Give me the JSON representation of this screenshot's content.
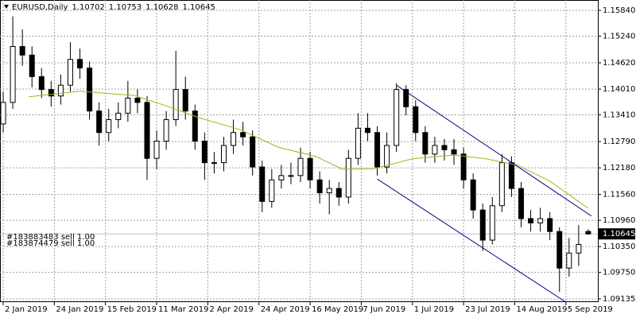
{
  "chart_data": {
    "type": "candlestick",
    "symbol": "EURUSD,Daily",
    "x": [
      0,
      3,
      6,
      9,
      12,
      15,
      18,
      21,
      24,
      27,
      30,
      33,
      36,
      39,
      42,
      45,
      48,
      51,
      54,
      57,
      60,
      63,
      66,
      69,
      72,
      75,
      78,
      81,
      84,
      87,
      90,
      93,
      96,
      99,
      102,
      105,
      108,
      111,
      114,
      117,
      120,
      123,
      126,
      129,
      132,
      135,
      138,
      141,
      144,
      147,
      150,
      153,
      156,
      159,
      162,
      165,
      168,
      171,
      174,
      177,
      180,
      183
    ],
    "open": [
      1.132,
      1.137,
      1.15,
      1.148,
      1.143,
      1.14,
      1.1385,
      1.141,
      1.147,
      1.145,
      1.135,
      1.13,
      1.133,
      1.1345,
      1.138,
      1.137,
      1.124,
      1.128,
      1.133,
      1.14,
      1.135,
      1.128,
      1.123,
      1.123,
      1.127,
      1.13,
      1.129,
      1.122,
      1.114,
      1.119,
      1.12,
      1.12,
      1.124,
      1.119,
      1.116,
      1.117,
      1.115,
      1.124,
      1.131,
      1.13,
      1.122,
      1.127,
      1.14,
      1.136,
      1.13,
      1.125,
      1.127,
      1.126,
      1.125,
      1.119,
      1.112,
      1.105,
      1.113,
      1.123,
      1.117,
      1.11,
      1.109,
      1.11,
      1.107,
      1.0985,
      1.102,
      1.10702
    ],
    "high": [
      1.1395,
      1.157,
      1.154,
      1.15,
      1.145,
      1.142,
      1.1435,
      1.151,
      1.1495,
      1.1465,
      1.137,
      1.1355,
      1.137,
      1.142,
      1.14,
      1.1385,
      1.1305,
      1.135,
      1.149,
      1.143,
      1.1365,
      1.13,
      1.1255,
      1.129,
      1.133,
      1.1325,
      1.1305,
      1.1235,
      1.1215,
      1.1225,
      1.123,
      1.1265,
      1.1255,
      1.121,
      1.119,
      1.1185,
      1.126,
      1.1345,
      1.1345,
      1.1315,
      1.13,
      1.1415,
      1.141,
      1.1375,
      1.1315,
      1.129,
      1.1285,
      1.1285,
      1.1265,
      1.1205,
      1.1135,
      1.115,
      1.125,
      1.1245,
      1.1185,
      1.112,
      1.1125,
      1.1115,
      1.108,
      1.1055,
      1.1085,
      1.10753
    ],
    "low": [
      1.13,
      1.1355,
      1.1455,
      1.1405,
      1.138,
      1.136,
      1.1365,
      1.1395,
      1.1425,
      1.133,
      1.127,
      1.128,
      1.131,
      1.1325,
      1.1345,
      1.119,
      1.1215,
      1.126,
      1.1315,
      1.133,
      1.126,
      1.119,
      1.1205,
      1.121,
      1.125,
      1.127,
      1.12,
      1.1115,
      1.1125,
      1.117,
      1.118,
      1.1185,
      1.117,
      1.1135,
      1.111,
      1.113,
      1.1135,
      1.1225,
      1.128,
      1.12,
      1.1205,
      1.1255,
      1.134,
      1.128,
      1.123,
      1.123,
      1.1235,
      1.1225,
      1.117,
      1.11,
      1.1025,
      1.104,
      1.1115,
      1.115,
      1.108,
      1.107,
      1.107,
      1.105,
      1.093,
      1.0965,
      1.099,
      1.10628
    ],
    "close": [
      1.137,
      1.15,
      1.148,
      1.143,
      1.14,
      1.1385,
      1.141,
      1.147,
      1.145,
      1.135,
      1.13,
      1.133,
      1.1345,
      1.138,
      1.137,
      1.124,
      1.128,
      1.133,
      1.14,
      1.135,
      1.128,
      1.123,
      1.123,
      1.127,
      1.13,
      1.129,
      1.122,
      1.114,
      1.119,
      1.12,
      1.12,
      1.124,
      1.119,
      1.116,
      1.117,
      1.115,
      1.124,
      1.131,
      1.13,
      1.122,
      1.127,
      1.14,
      1.136,
      1.13,
      1.125,
      1.127,
      1.126,
      1.125,
      1.119,
      1.112,
      1.105,
      1.113,
      1.123,
      1.117,
      1.11,
      1.109,
      1.11,
      1.107,
      1.0985,
      1.102,
      1.104,
      1.10645
    ],
    "xlim": [
      -1,
      186
    ],
    "xticks": [
      {
        "value": 0,
        "label": "2 Jan 2019"
      },
      {
        "value": 16,
        "label": "24 Jan 2019"
      },
      {
        "value": 32,
        "label": "15 Feb 2019"
      },
      {
        "value": 48,
        "label": "11 Mar 2019"
      },
      {
        "value": 64,
        "label": "2 Apr 2019"
      },
      {
        "value": 80,
        "label": "24 Apr 2019"
      },
      {
        "value": 96,
        "label": "16 May 2019"
      },
      {
        "value": 112,
        "label": "7 Jun 2019"
      },
      {
        "value": 128,
        "label": "1 Jul 2019"
      },
      {
        "value": 144,
        "label": "23 Jul 2019"
      },
      {
        "value": 160,
        "label": "14 Aug 2019"
      },
      {
        "value": 176,
        "label": "5 Sep 2019"
      }
    ],
    "ylim": [
      1.0906,
      1.1608
    ],
    "yticks": [
      {
        "value": 1.1584,
        "label": "1.15840"
      },
      {
        "value": 1.1524,
        "label": "1.15240"
      },
      {
        "value": 1.1462,
        "label": "1.14620"
      },
      {
        "value": 1.1401,
        "label": "1.14010"
      },
      {
        "value": 1.1341,
        "label": "1.13410"
      },
      {
        "value": 1.1279,
        "label": "1.12790"
      },
      {
        "value": 1.1218,
        "label": "1.12180"
      },
      {
        "value": 1.1156,
        "label": "1.11560"
      },
      {
        "value": 1.1096,
        "label": "1.10960"
      },
      {
        "value": 1.1035,
        "label": "1.10350"
      },
      {
        "value": 1.0975,
        "label": "1.09750"
      },
      1.09135
    ],
    "grid": true,
    "up_color": "#ffffff",
    "down_color": "#000000",
    "ma": {
      "color": "#8fbc1e",
      "x": [
        8,
        24,
        41,
        51,
        61,
        74,
        86,
        98,
        106,
        116,
        128,
        141,
        151,
        161,
        171,
        183
      ],
      "values": [
        1.1383,
        1.1396,
        1.1386,
        1.1362,
        1.1335,
        1.1307,
        1.1266,
        1.1244,
        1.1215,
        1.1216,
        1.1239,
        1.1248,
        1.1239,
        1.1224,
        1.1187,
        1.1124
      ]
    },
    "channels": {
      "color": "#000080",
      "lines": [
        {
          "x": [
            123,
            184
          ],
          "values": [
            1.141,
            1.1106
          ]
        },
        {
          "x": [
            117,
            176
          ],
          "values": [
            1.1192,
            1.0906
          ]
        }
      ]
    },
    "last_price": 1.10645,
    "last_price_color": "#c0c0c0",
    "orders": [
      {
        "label": "#183883483 sell 1.00",
        "price": 1.105
      },
      {
        "label": "#183874479 sell 1.00",
        "price": 1.1035
      }
    ]
  }
}
